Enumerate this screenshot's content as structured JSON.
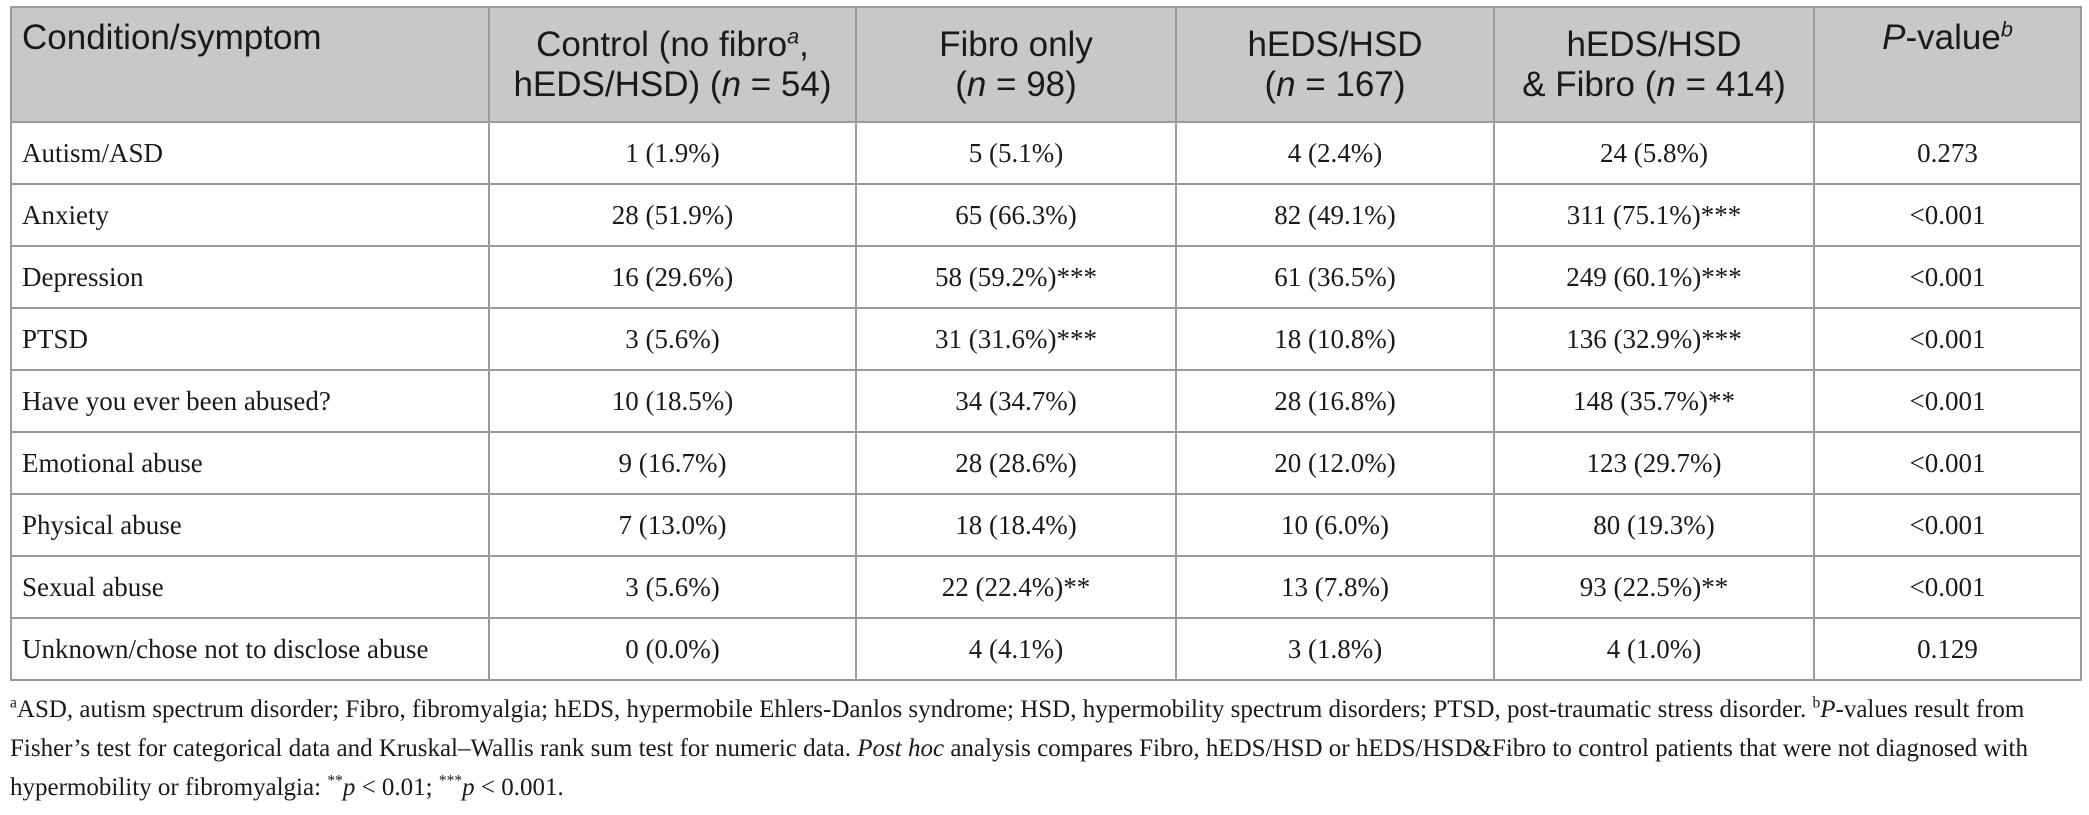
{
  "table": {
    "headers": [
      {
        "line1": "Condition/symptom"
      },
      {
        "line1a": "Control (no fibro",
        "line1sup": "a",
        "line1b": ",",
        "line2a": "hEDS/HSD) (",
        "n": "n",
        "line2b": " = 54)"
      },
      {
        "line1": "Fibro only",
        "line2a": "(",
        "n": "n",
        "line2b": " = 98)"
      },
      {
        "line1": "hEDS/HSD",
        "line2a": "(",
        "n": "n",
        "line2b": " = 167)"
      },
      {
        "line1": "hEDS/HSD",
        "line2a": "& Fibro (",
        "n": "n",
        "line2b": " = 414)"
      },
      {
        "italic": "P",
        "rest": "-value",
        "sup": "b"
      }
    ],
    "rows": [
      {
        "condition": "Autism/ASD",
        "control": "1 (1.9%)",
        "fibro": "5 (5.1%)",
        "heds": "4 (2.4%)",
        "heds_fibro": "24 (5.8%)",
        "p": "0.273"
      },
      {
        "condition": "Anxiety",
        "control": "28 (51.9%)",
        "fibro": "65 (66.3%)",
        "heds": "82 (49.1%)",
        "heds_fibro": "311 (75.1%)***",
        "p": "<0.001"
      },
      {
        "condition": "Depression",
        "control": "16 (29.6%)",
        "fibro": "58 (59.2%)***",
        "heds": "61 (36.5%)",
        "heds_fibro": "249 (60.1%)***",
        "p": "<0.001"
      },
      {
        "condition": "PTSD",
        "control": "3 (5.6%)",
        "fibro": "31 (31.6%)***",
        "heds": "18 (10.8%)",
        "heds_fibro": "136 (32.9%)***",
        "p": "<0.001"
      },
      {
        "condition": "Have you ever been abused?",
        "control": "10 (18.5%)",
        "fibro": "34 (34.7%)",
        "heds": "28 (16.8%)",
        "heds_fibro": "148 (35.7%)**",
        "p": "<0.001"
      },
      {
        "condition": "Emotional abuse",
        "control": "9 (16.7%)",
        "fibro": "28 (28.6%)",
        "heds": "20 (12.0%)",
        "heds_fibro": "123 (29.7%)",
        "p": "<0.001"
      },
      {
        "condition": "Physical abuse",
        "control": "7 (13.0%)",
        "fibro": "18 (18.4%)",
        "heds": "10 (6.0%)",
        "heds_fibro": "80 (19.3%)",
        "p": "<0.001"
      },
      {
        "condition": "Sexual abuse",
        "control": "3 (5.6%)",
        "fibro": "22 (22.4%)**",
        "heds": "13 (7.8%)",
        "heds_fibro": "93 (22.5%)**",
        "p": "<0.001"
      },
      {
        "condition": "Unknown/chose not to disclose abuse",
        "control": "0 (0.0%)",
        "fibro": "4 (4.1%)",
        "heds": "3 (1.8%)",
        "heds_fibro": "4 (1.0%)",
        "p": "0.129"
      }
    ]
  },
  "footnote": {
    "sup_a": "a",
    "text_a": "ASD, autism spectrum disorder; Fibro, fibromyalgia; hEDS, hypermobile Ehlers-Danlos syndrome; HSD, hypermobility spectrum disorders; PTSD, post-traumatic stress disorder. ",
    "sup_b": "b",
    "p_italic": "P",
    "text_b": "-values result from Fisher’s test for categorical data and Kruskal–Wallis rank sum test for numeric data. ",
    "post_hoc": "Post hoc",
    "text_c": " analysis compares Fibro, hEDS/HSD or hEDS/HSD&Fibro to control patients that were not diagnosed with hypermobility or fibromyalgia: ",
    "stars2": "**",
    "p1": "p",
    "thr1": " < 0.01; ",
    "stars3": "***",
    "p2": "p",
    "thr2": " < 0.001."
  }
}
